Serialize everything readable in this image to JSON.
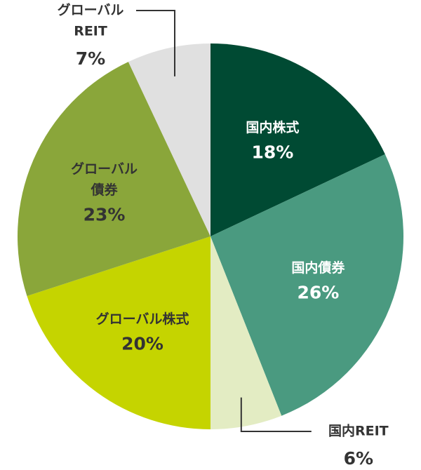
{
  "chart_data": {
    "type": "pie",
    "categories": [
      [
        "国内株式"
      ],
      [
        "国内債券"
      ],
      [
        "国内REIT"
      ],
      [
        "グローバル株式"
      ],
      [
        "グローバル",
        "債券"
      ],
      [
        "グローバル",
        "REIT"
      ]
    ],
    "values": [
      18,
      26,
      6,
      20,
      23,
      7
    ],
    "value_labels": [
      "18%",
      "26%",
      "6%",
      "20%",
      "23%",
      "7%"
    ],
    "colors": [
      "#004a33",
      "#4a9a80",
      "#e3ecc3",
      "#c5d400",
      "#8aa63a",
      "#e0e0e0"
    ]
  }
}
